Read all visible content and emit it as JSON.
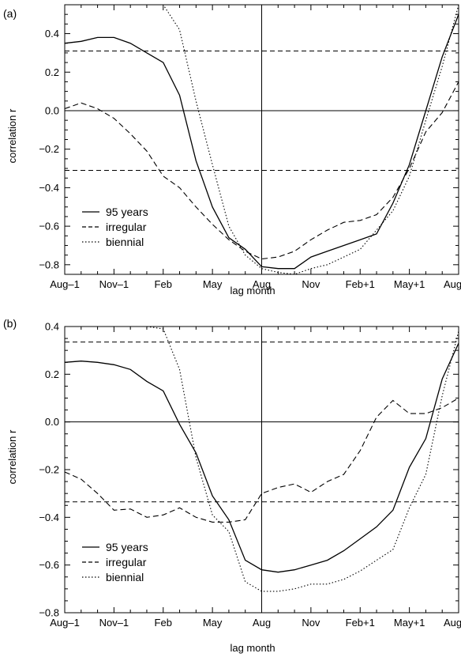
{
  "chart_data": [
    {
      "type": "line",
      "panel_label": "(a)",
      "xlabel": "lag month",
      "ylabel": "correlation r",
      "x_ticks": [
        "Aug–1",
        "Nov–1",
        "Feb",
        "May",
        "Aug",
        "Nov",
        "Feb+1",
        "May+1",
        "Aug+1"
      ],
      "x_tick_lags": [
        -12,
        -9,
        -6,
        -3,
        0,
        3,
        6,
        9,
        12
      ],
      "xlim": [
        -12,
        12
      ],
      "ylim": [
        -0.85,
        0.55
      ],
      "y_ticks": [
        "−0.8",
        "−0.6",
        "−0.4",
        "−0.2",
        "0.0",
        "0.2",
        "0.4"
      ],
      "y_tick_values": [
        -0.8,
        -0.6,
        -0.4,
        -0.2,
        0.0,
        0.2,
        0.4
      ],
      "significance_levels": [
        0.31,
        -0.31
      ],
      "reference_lines": {
        "y": 0.0,
        "x": 0
      },
      "legend_position": "bottom-left",
      "series": [
        {
          "name": "95 years",
          "style": "solid",
          "x": [
            -12,
            -11,
            -10,
            -9,
            -8,
            -7,
            -6,
            -5,
            -4,
            -3,
            -2,
            -1,
            0,
            1,
            2,
            3,
            4,
            5,
            6,
            7,
            8,
            9,
            10,
            11,
            12
          ],
          "y": [
            0.35,
            0.36,
            0.38,
            0.38,
            0.35,
            0.3,
            0.25,
            0.08,
            -0.26,
            -0.5,
            -0.66,
            -0.72,
            -0.81,
            -0.82,
            -0.82,
            -0.76,
            -0.73,
            -0.7,
            -0.67,
            -0.64,
            -0.48,
            -0.28,
            0.0,
            0.28,
            0.5
          ]
        },
        {
          "name": "irregular",
          "style": "dashed",
          "x": [
            -12,
            -11,
            -10,
            -9,
            -8,
            -7,
            -6,
            -5,
            -4,
            -3,
            -2,
            -1,
            0,
            1,
            2,
            3,
            4,
            5,
            6,
            7,
            8,
            9,
            10,
            11,
            12
          ],
          "y": [
            0.01,
            0.04,
            0.01,
            -0.04,
            -0.12,
            -0.21,
            -0.34,
            -0.4,
            -0.5,
            -0.59,
            -0.67,
            -0.73,
            -0.77,
            -0.76,
            -0.73,
            -0.67,
            -0.62,
            -0.58,
            -0.57,
            -0.54,
            -0.45,
            -0.3,
            -0.11,
            -0.01,
            0.15
          ]
        },
        {
          "name": "biennial",
          "style": "dotted",
          "x": [
            -7,
            -6,
            -5,
            -4,
            -3,
            -2,
            -1,
            0,
            1,
            2,
            3,
            4,
            5,
            6,
            7,
            8,
            9,
            10,
            11,
            12
          ],
          "y": [
            0.55,
            0.55,
            0.42,
            0.05,
            -0.28,
            -0.6,
            -0.75,
            -0.82,
            -0.84,
            -0.85,
            -0.82,
            -0.8,
            -0.76,
            -0.72,
            -0.62,
            -0.52,
            -0.34,
            -0.05,
            0.23,
            0.55
          ]
        }
      ]
    },
    {
      "type": "line",
      "panel_label": "(b)",
      "xlabel": "lag month",
      "ylabel": "correlation r",
      "x_ticks": [
        "Aug–1",
        "Nov–1",
        "Feb",
        "May",
        "Aug",
        "Nov",
        "Feb+1",
        "May+1",
        "Aug+1"
      ],
      "x_tick_lags": [
        -12,
        -9,
        -6,
        -3,
        0,
        3,
        6,
        9,
        12
      ],
      "xlim": [
        -12,
        12
      ],
      "ylim": [
        -0.8,
        0.4
      ],
      "y_ticks": [
        "−0.8",
        "−0.6",
        "−0.4",
        "−0.2",
        "0.0",
        "0.2",
        "0.4"
      ],
      "y_tick_values": [
        -0.8,
        -0.6,
        -0.4,
        -0.2,
        0.0,
        0.2,
        0.4
      ],
      "significance_levels": [
        0.335,
        -0.335
      ],
      "reference_lines": {
        "y": 0.0,
        "x": 0
      },
      "legend_position": "bottom-left",
      "series": [
        {
          "name": "95 years",
          "style": "solid",
          "x": [
            -12,
            -11,
            -10,
            -9,
            -8,
            -7,
            -6,
            -5,
            -4,
            -3,
            -2,
            -1,
            0,
            1,
            2,
            3,
            4,
            5,
            6,
            7,
            8,
            9,
            10,
            11,
            12
          ],
          "y": [
            0.25,
            0.255,
            0.25,
            0.24,
            0.22,
            0.17,
            0.13,
            -0.01,
            -0.13,
            -0.31,
            -0.41,
            -0.58,
            -0.62,
            -0.63,
            -0.62,
            -0.6,
            -0.58,
            -0.54,
            -0.49,
            -0.44,
            -0.37,
            -0.19,
            -0.07,
            0.18,
            0.33
          ]
        },
        {
          "name": "irregular",
          "style": "dashed",
          "x": [
            -12,
            -11,
            -10,
            -9,
            -8,
            -7,
            -6,
            -5,
            -4,
            -3,
            -2,
            -1,
            0,
            1,
            2,
            3,
            4,
            5,
            6,
            7,
            8,
            9,
            10,
            11,
            12
          ],
          "y": [
            -0.21,
            -0.24,
            -0.3,
            -0.37,
            -0.365,
            -0.4,
            -0.39,
            -0.36,
            -0.4,
            -0.42,
            -0.42,
            -0.41,
            -0.3,
            -0.275,
            -0.26,
            -0.295,
            -0.25,
            -0.22,
            -0.12,
            0.02,
            0.09,
            0.035,
            0.035,
            0.06,
            0.1
          ]
        },
        {
          "name": "biennial",
          "style": "dotted",
          "x": [
            -7,
            -6,
            -5,
            -4,
            -3,
            -2,
            -1,
            0,
            1,
            2,
            3,
            4,
            5,
            6,
            7,
            8,
            9,
            10,
            11,
            12
          ],
          "y": [
            0.4,
            0.39,
            0.22,
            -0.15,
            -0.39,
            -0.46,
            -0.67,
            -0.71,
            -0.71,
            -0.7,
            -0.68,
            -0.68,
            -0.66,
            -0.625,
            -0.58,
            -0.535,
            -0.36,
            -0.22,
            0.11,
            0.38
          ]
        }
      ]
    }
  ]
}
